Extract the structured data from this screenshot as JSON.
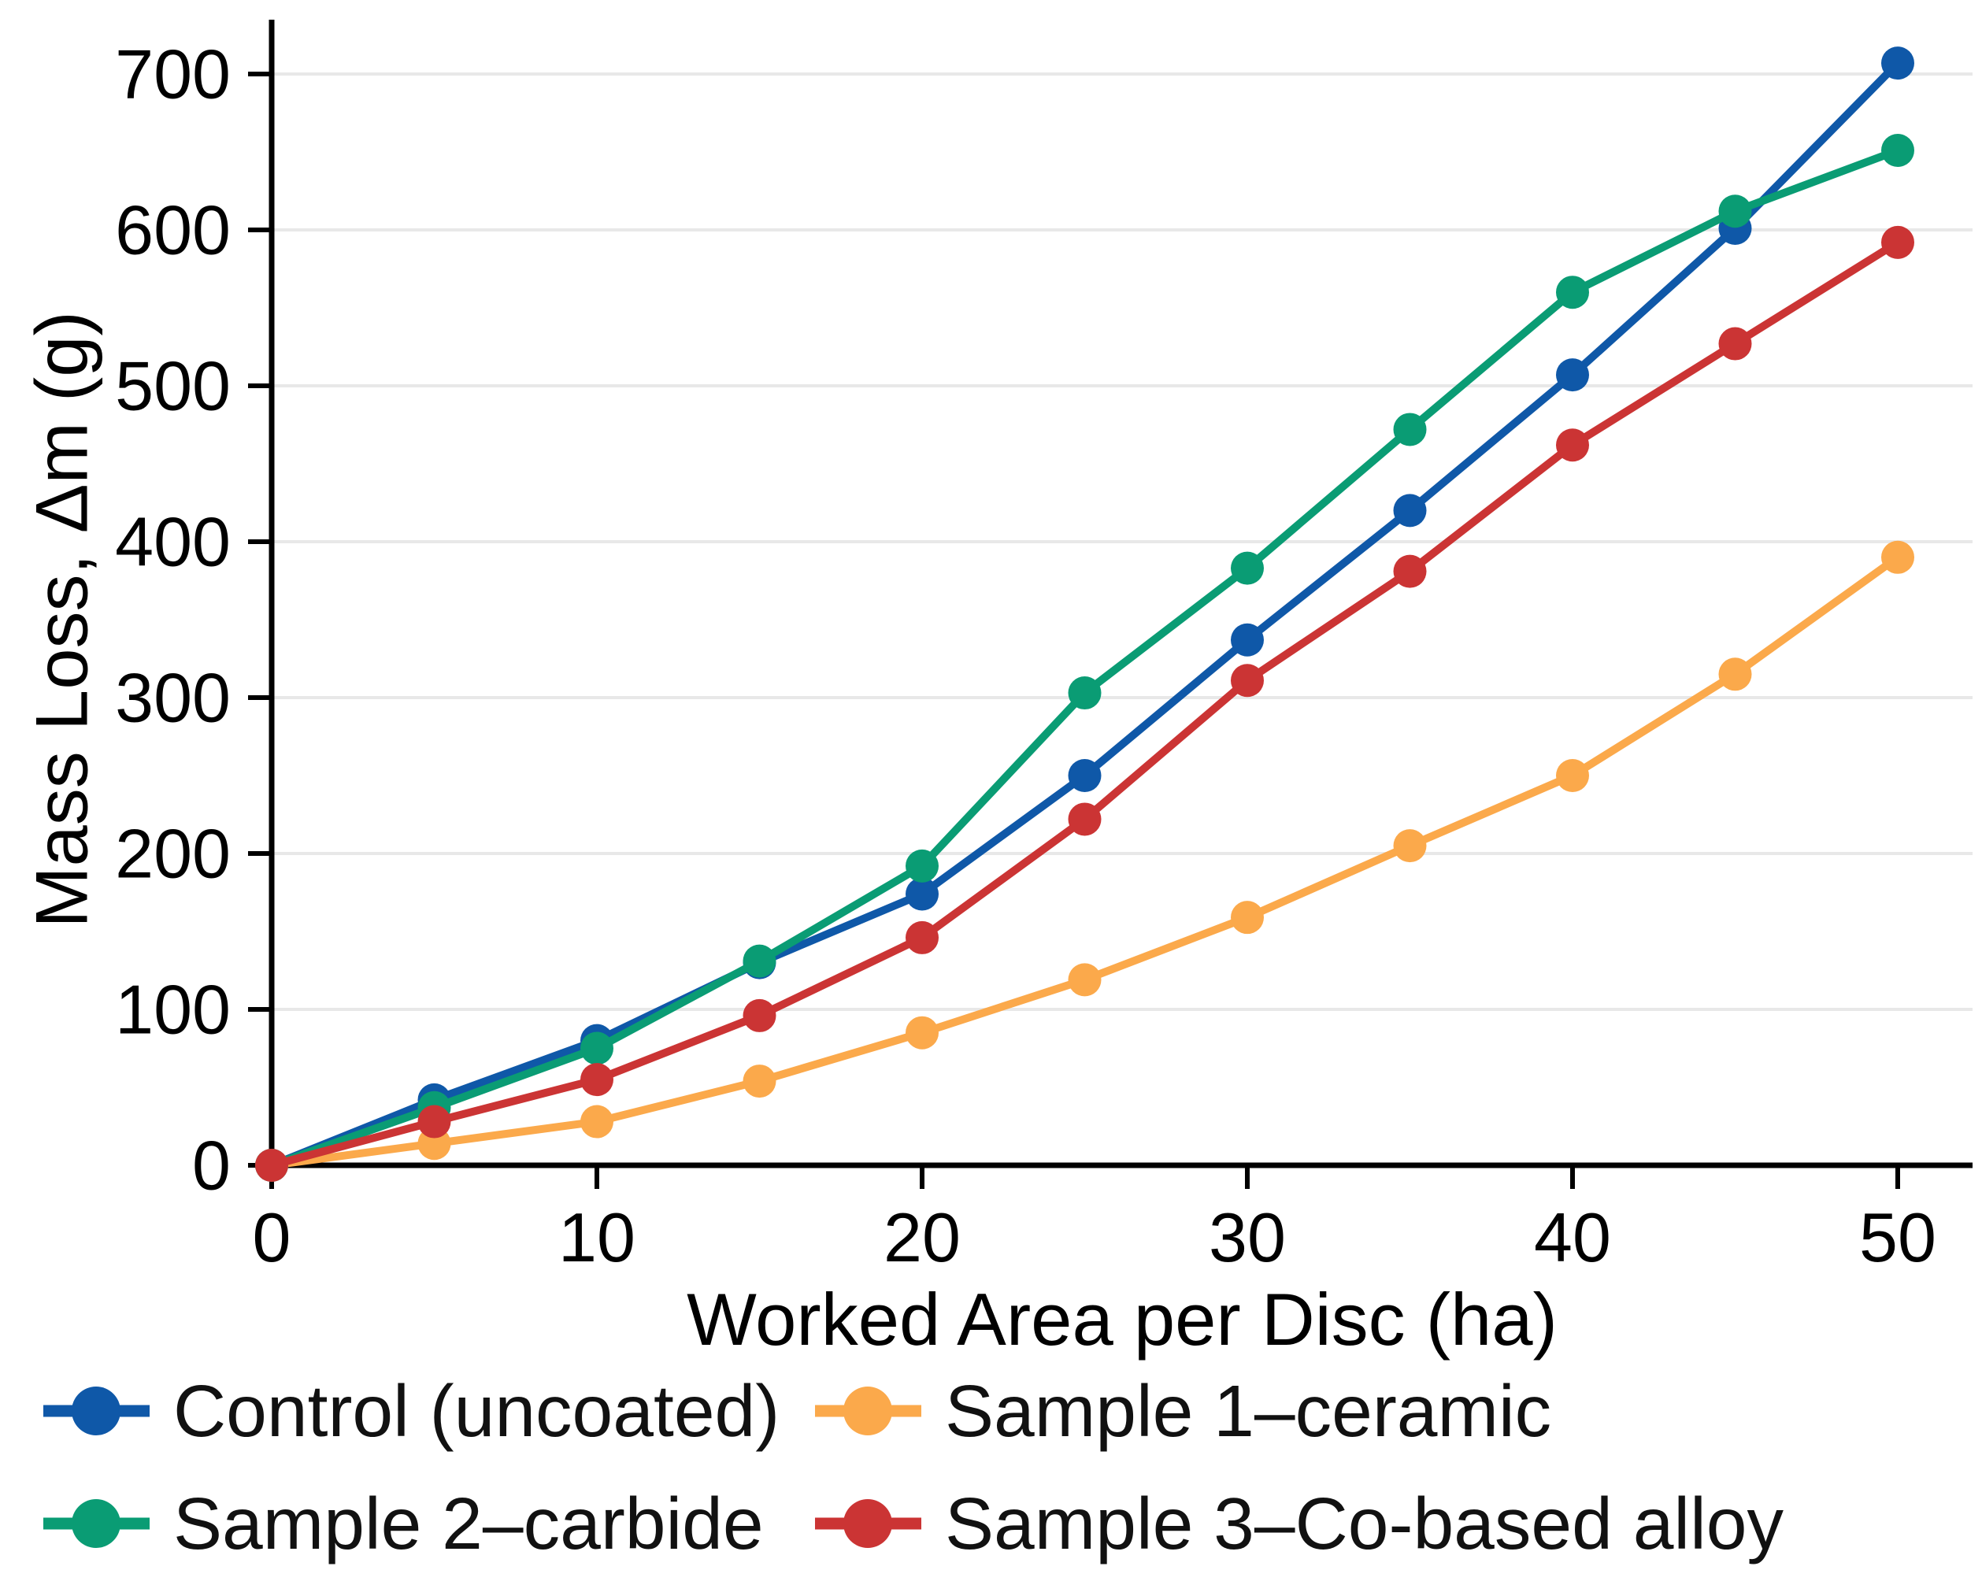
{
  "figure": {
    "background": "#ffffff",
    "axis_color": "#000000",
    "gridline_color": "#e8e8e8",
    "text_color": "#000000"
  },
  "chart_data": {
    "type": "line",
    "title": "",
    "xlabel": "Worked Area per Disc (ha)",
    "ylabel": "Mass Loss, Δm (g)",
    "x": [
      0,
      5,
      10,
      15,
      20,
      25,
      30,
      35,
      40,
      45,
      50
    ],
    "xticks": [
      0,
      10,
      20,
      30,
      40,
      50
    ],
    "yticks": [
      0,
      100,
      200,
      300,
      400,
      500,
      600,
      700
    ],
    "xlim": [
      0,
      52.3
    ],
    "ylim": [
      0,
      735
    ],
    "grid": true,
    "legend_position": "bottom-two-columns",
    "series": [
      {
        "name": "Control (uncoated)",
        "color": "#0f58a8",
        "values": [
          0,
          42,
          80,
          130,
          174,
          250,
          337,
          420,
          507,
          601,
          707
        ]
      },
      {
        "name": "Sample 1–ceramic",
        "color": "#fba94b",
        "values": [
          0,
          14,
          28,
          54,
          85,
          119,
          159,
          205,
          250,
          315,
          390
        ]
      },
      {
        "name": "Sample 2–carbide",
        "color": "#0a9c74",
        "values": [
          0,
          37,
          75,
          131,
          192,
          303,
          383,
          472,
          560,
          612,
          651
        ]
      },
      {
        "name": "Sample 3–Co-based alloy",
        "color": "#cb3434",
        "values": [
          0,
          28,
          55,
          96,
          146,
          222,
          311,
          381,
          462,
          527,
          592
        ]
      }
    ]
  }
}
